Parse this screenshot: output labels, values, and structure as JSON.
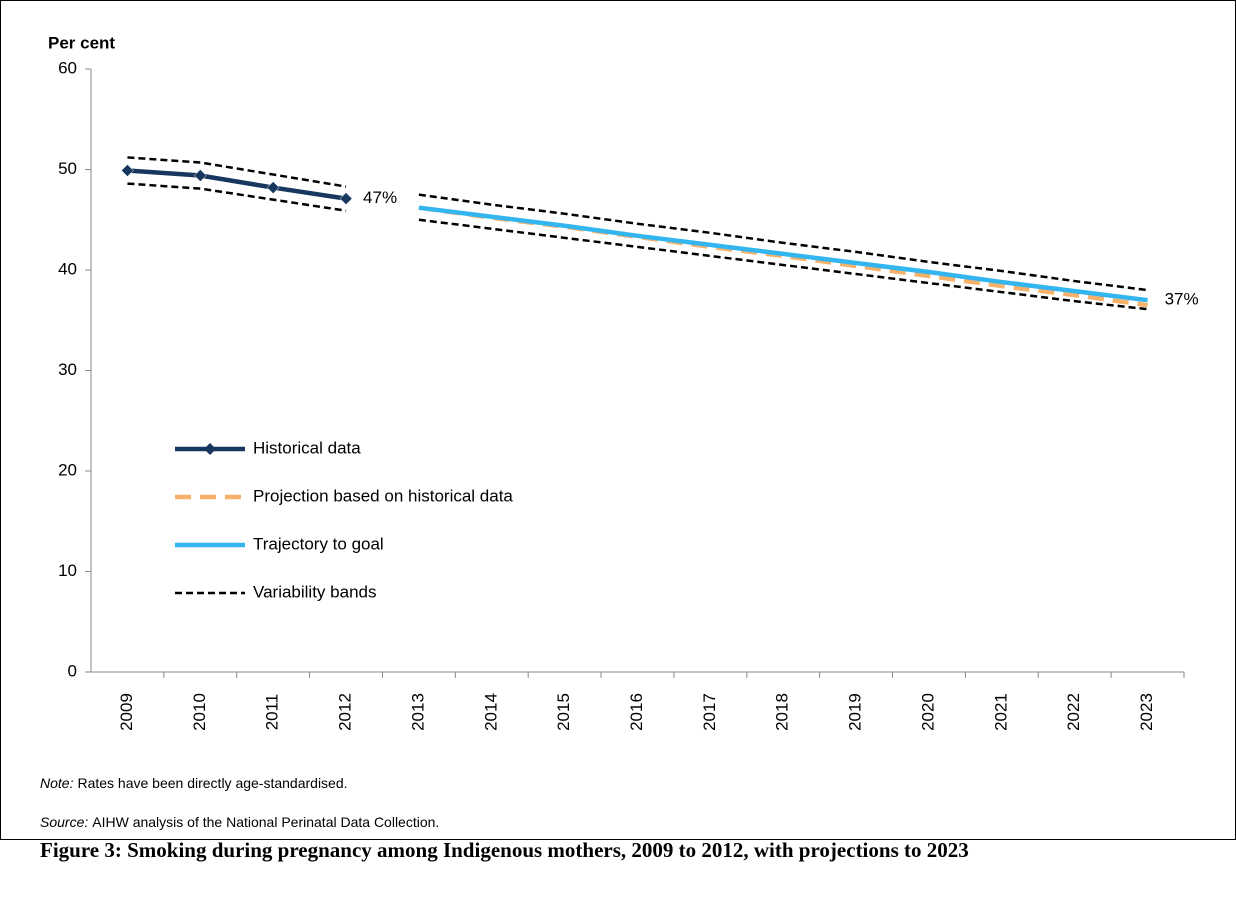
{
  "chart_data": {
    "type": "line",
    "y_label": "Per cent",
    "categories": [
      "2009",
      "2010",
      "2011",
      "2012",
      "2013",
      "2014",
      "2015",
      "2016",
      "2017",
      "2018",
      "2019",
      "2020",
      "2021",
      "2022",
      "2023"
    ],
    "ylim": [
      0,
      60
    ],
    "yticks": [
      0,
      10,
      20,
      30,
      40,
      50,
      60
    ],
    "series": [
      {
        "name": "Historical data",
        "color": "#17375e",
        "style": "solid-markers",
        "values": [
          49.9,
          49.4,
          48.2,
          47.1,
          null,
          null,
          null,
          null,
          null,
          null,
          null,
          null,
          null,
          null,
          null
        ],
        "value_labels": [
          null,
          null,
          null,
          "47%",
          null,
          null,
          null,
          null,
          null,
          null,
          null,
          null,
          null,
          null,
          null
        ]
      },
      {
        "name": "Projection based on historical data",
        "color": "#f6b26b",
        "style": "dashed",
        "values": [
          null,
          null,
          null,
          null,
          46.2,
          45.2,
          44.3,
          43.3,
          42.3,
          41.4,
          40.4,
          39.4,
          38.4,
          37.5,
          36.5
        ]
      },
      {
        "name": "Trajectory to goal",
        "color": "#33b5f0",
        "style": "solid",
        "values": [
          null,
          null,
          null,
          null,
          46.2,
          45.3,
          44.4,
          43.4,
          42.5,
          41.6,
          40.7,
          39.8,
          38.8,
          37.9,
          37.0
        ],
        "value_labels": [
          null,
          null,
          null,
          null,
          null,
          null,
          null,
          null,
          null,
          null,
          null,
          null,
          null,
          null,
          "37%"
        ]
      }
    ],
    "bands": {
      "name": "Variability bands",
      "color": "#000000",
      "lines": [
        [
          51.2,
          50.7,
          49.5,
          48.3,
          null,
          null,
          null,
          null,
          null,
          null,
          null,
          null,
          null,
          null,
          null
        ],
        [
          48.6,
          48.1,
          47.0,
          45.9,
          null,
          null,
          null,
          null,
          null,
          null,
          null,
          null,
          null,
          null,
          null
        ],
        [
          null,
          null,
          null,
          null,
          47.5,
          46.5,
          45.6,
          44.6,
          43.7,
          42.7,
          41.8,
          40.8,
          39.9,
          38.9,
          38.0
        ],
        [
          null,
          null,
          null,
          null,
          45.0,
          44.1,
          43.2,
          42.3,
          41.4,
          40.5,
          39.6,
          38.7,
          37.8,
          36.9,
          36.1
        ]
      ]
    }
  },
  "note": {
    "label": "Note:",
    "text": "Rates have been directly age-standardised."
  },
  "source": {
    "label": "Source:",
    "text": "AIHW analysis of the National Perinatal Data Collection."
  },
  "caption": "Figure 3: Smoking during pregnancy among Indigenous mothers, 2009 to 2012, with projections to 2023"
}
